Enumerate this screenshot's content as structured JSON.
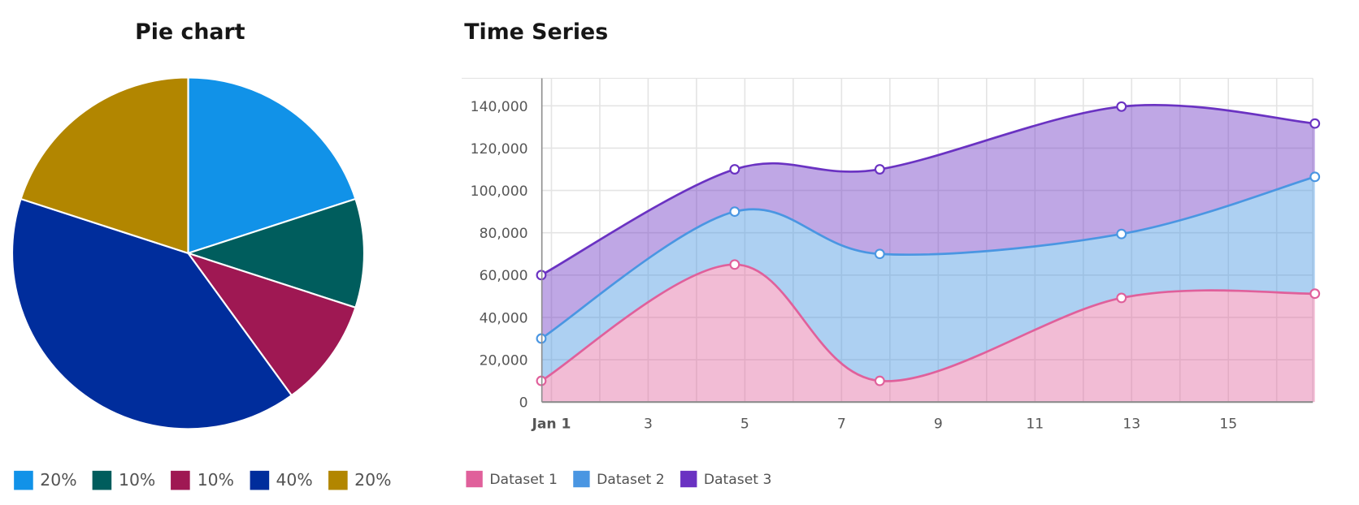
{
  "chart_data": [
    {
      "type": "pie",
      "title": "Pie chart",
      "slices": [
        {
          "label": "20%",
          "value": 20,
          "color": "#1192e8"
        },
        {
          "label": "10%",
          "value": 10,
          "color": "#005d5d"
        },
        {
          "label": "10%",
          "value": 10,
          "color": "#9f1853"
        },
        {
          "label": "40%",
          "value": 40,
          "color": "#002d9c"
        },
        {
          "label": "20%",
          "value": 20,
          "color": "#b28600"
        }
      ],
      "legend_position": "bottom"
    },
    {
      "type": "area",
      "stacked": true,
      "title": "Time Series",
      "x": [
        "Jan 1",
        "Jan 5",
        "Jan 8",
        "Jan 13",
        "Jan 17"
      ],
      "x_ticks": [
        "Jan 1",
        "3",
        "5",
        "7",
        "9",
        "11",
        "13",
        "15"
      ],
      "y_ticks": [
        "0",
        "20,000",
        "40,000",
        "60,000",
        "80,000",
        "100,000",
        "120,000",
        "140,000"
      ],
      "ylim": [
        0,
        153000
      ],
      "grid": true,
      "legend_position": "bottom",
      "series": [
        {
          "name": "Dataset 1",
          "color": "#e0609b",
          "values": [
            10000,
            65000,
            10000,
            49213,
            51213
          ]
        },
        {
          "name": "Dataset 2",
          "color": "#4a96e2",
          "values": [
            20000,
            25000,
            60000,
            30213,
            55213
          ]
        },
        {
          "name": "Dataset 3",
          "color": "#6a32c2",
          "values": [
            30000,
            20000,
            40000,
            60213,
            25213
          ]
        }
      ]
    }
  ]
}
